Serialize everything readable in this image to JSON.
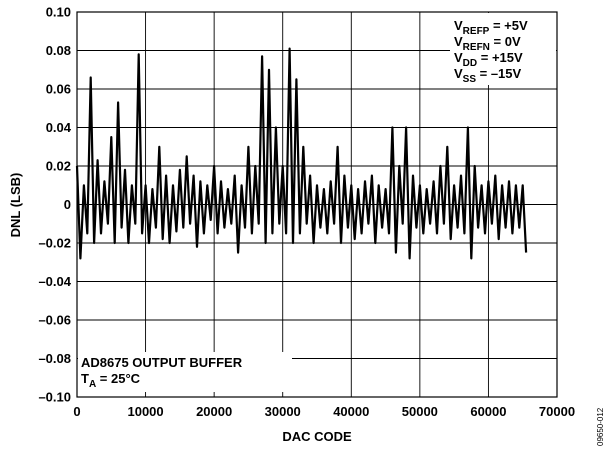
{
  "chart_data": {
    "type": "line",
    "xlabel": "DAC CODE",
    "ylabel": "DNL (LSB)",
    "xlim": [
      0,
      70000
    ],
    "ylim": [
      -0.1,
      0.1
    ],
    "x_ticks": [
      "0",
      "10000",
      "20000",
      "30000",
      "40000",
      "50000",
      "60000",
      "70000"
    ],
    "y_ticks": [
      "0.10",
      "0.08",
      "0.06",
      "0.04",
      "0.02",
      "0",
      "–0.02",
      "–0.04",
      "–0.06",
      "–0.08",
      "–0.10"
    ],
    "grid": true,
    "line_color": "#000000",
    "conditions": [
      {
        "main": "V",
        "sub": "REFP",
        "value": " = +5V"
      },
      {
        "main": "V",
        "sub": "REFN",
        "value": " = 0V"
      },
      {
        "main": "V",
        "sub": "DD",
        "value": " = +15V"
      },
      {
        "main": "V",
        "sub": "SS",
        "value": " = –15V"
      }
    ],
    "note": {
      "line1": "AD8675 OUTPUT BUFFER",
      "line2_main": "T",
      "line2_sub": "A",
      "line2_value": " = 25°C"
    },
    "figure_id": "09650-012",
    "series": [
      {
        "x": [
          0,
          500,
          1000,
          1500,
          2000,
          2500,
          3000,
          3500,
          4000,
          4500,
          5000,
          5500,
          6000,
          6500,
          7000,
          7500,
          8000,
          8500,
          9000,
          9500,
          10000,
          10500,
          11000,
          11500,
          12000,
          12500,
          13000,
          13500,
          14000,
          14500,
          15000,
          15500,
          16000,
          16500,
          17000,
          17500,
          18000,
          18500,
          19000,
          19500,
          20000,
          20500,
          21000,
          21500,
          22000,
          22500,
          23000,
          23500,
          24000,
          24500,
          25000,
          25500,
          26000,
          26500,
          27000,
          27500,
          28000,
          28500,
          29000,
          29500,
          30000,
          30500,
          31000,
          31500,
          32000,
          32500,
          33000,
          33500,
          34000,
          34500,
          35000,
          35500,
          36000,
          36500,
          37000,
          37500,
          38000,
          38500,
          39000,
          39500,
          40000,
          40500,
          41000,
          41500,
          42000,
          42500,
          43000,
          43500,
          44000,
          44500,
          45000,
          45500,
          46000,
          46500,
          47000,
          47500,
          48000,
          48500,
          49000,
          49500,
          50000,
          50500,
          51000,
          51500,
          52000,
          52500,
          53000,
          53500,
          54000,
          54500,
          55000,
          55500,
          56000,
          56500,
          57000,
          57500,
          58000,
          58500,
          59000,
          59500,
          60000,
          60500,
          61000,
          61500,
          62000,
          62500,
          63000,
          63500,
          64000,
          64500,
          65000,
          65500
        ],
        "y": [
          0.02,
          -0.028,
          0.01,
          -0.015,
          0.066,
          -0.02,
          0.023,
          -0.015,
          0.012,
          -0.01,
          0.035,
          -0.02,
          0.053,
          -0.012,
          0.018,
          -0.02,
          0.01,
          -0.01,
          0.078,
          -0.015,
          0.01,
          -0.02,
          0.008,
          -0.012,
          0.03,
          -0.018,
          0.015,
          -0.02,
          0.01,
          -0.014,
          0.018,
          -0.012,
          0.025,
          -0.01,
          0.015,
          -0.022,
          0.012,
          -0.015,
          0.01,
          -0.008,
          0.02,
          -0.015,
          0.012,
          -0.012,
          0.008,
          -0.01,
          0.015,
          -0.025,
          0.01,
          -0.012,
          0.03,
          -0.015,
          0.02,
          -0.01,
          0.077,
          -0.02,
          0.07,
          -0.015,
          0.04,
          -0.01,
          0.02,
          -0.015,
          0.081,
          -0.02,
          0.065,
          -0.015,
          0.03,
          -0.01,
          0.015,
          -0.02,
          0.01,
          -0.012,
          0.008,
          -0.015,
          0.012,
          -0.01,
          0.03,
          -0.02,
          0.015,
          -0.012,
          0.01,
          -0.018,
          0.008,
          -0.015,
          0.012,
          -0.01,
          0.015,
          -0.02,
          0.01,
          -0.012,
          0.008,
          -0.015,
          0.04,
          -0.025,
          0.02,
          -0.01,
          0.04,
          -0.028,
          0.015,
          -0.012,
          0.01,
          -0.015,
          0.008,
          -0.01,
          0.012,
          -0.015,
          0.02,
          -0.01,
          0.03,
          -0.018,
          0.01,
          -0.012,
          0.015,
          -0.015,
          0.04,
          -0.028,
          0.02,
          -0.012,
          0.01,
          -0.015,
          0.012,
          -0.01,
          0.015,
          -0.018,
          0.01,
          -0.012,
          0.012,
          -0.015,
          0.01,
          -0.012,
          0.01,
          -0.025
        ]
      }
    ]
  }
}
